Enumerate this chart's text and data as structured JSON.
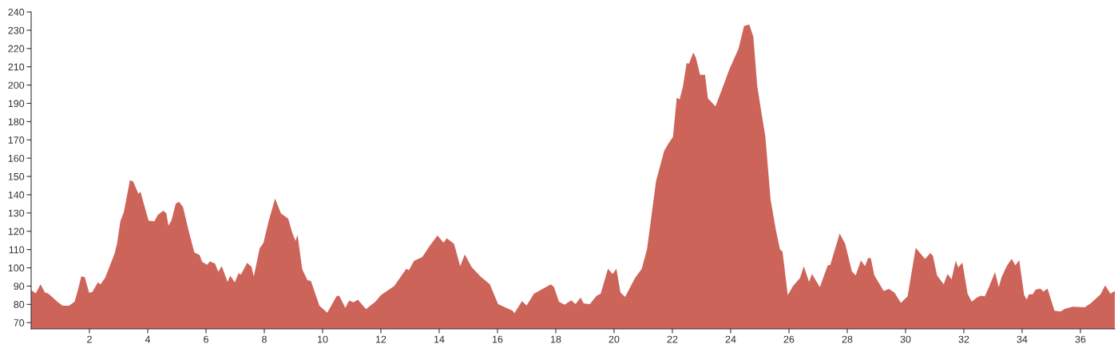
{
  "chart_data": {
    "type": "area",
    "x": [
      0,
      0.16,
      0.32,
      0.48,
      0.58,
      0.9,
      1.08,
      1.3,
      1.49,
      1.58,
      1.72,
      1.84,
      1.99,
      2.1,
      2.29,
      2.38,
      2.54,
      2.86,
      2.95,
      3.06,
      3.18,
      3.39,
      3.5,
      3.68,
      3.75,
      4.03,
      4.23,
      4.34,
      4.53,
      4.64,
      4.71,
      4.82,
      4.96,
      5.07,
      5.21,
      5.4,
      5.6,
      5.78,
      5.87,
      6.04,
      6.13,
      6.31,
      6.42,
      6.54,
      6.74,
      6.83,
      6.99,
      7.11,
      7.2,
      7.41,
      7.56,
      7.64,
      7.84,
      7.97,
      8.16,
      8.37,
      8.57,
      8.82,
      8.96,
      9.07,
      9.14,
      9.3,
      9.48,
      9.6,
      9.89,
      10.16,
      10.48,
      10.57,
      10.78,
      10.91,
      11.06,
      11.21,
      11.49,
      11.81,
      12,
      12.46,
      12.87,
      12.96,
      13.14,
      13.42,
      13.69,
      13.94,
      14.15,
      14.26,
      14.51,
      14.72,
      14.88,
      15.11,
      15.42,
      15.74,
      16.02,
      16.52,
      16.58,
      16.84,
      17,
      17.25,
      17.57,
      17.83,
      17.94,
      18.11,
      18.3,
      18.53,
      18.68,
      18.85,
      18.96,
      19.17,
      19.4,
      19.54,
      19.79,
      19.95,
      20.08,
      20.22,
      20.38,
      20.72,
      20.95,
      21.13,
      21.31,
      21.44,
      21.72,
      21.85,
      22.02,
      22.15,
      22.25,
      22.36,
      22.49,
      22.57,
      22.72,
      22.81,
      22.95,
      23.12,
      23.22,
      23.48,
      23.77,
      23.95,
      24.27,
      24.46,
      24.64,
      24.78,
      24.91,
      25.05,
      25.19,
      25.37,
      25.55,
      25.69,
      25.78,
      25.96,
      26.14,
      26.38,
      26.51,
      26.69,
      26.79,
      27.06,
      27.33,
      27.42,
      27.74,
      27.93,
      28.16,
      28.29,
      28.47,
      28.61,
      28.72,
      28.81,
      28.93,
      29.25,
      29.43,
      29.62,
      29.84,
      30.07,
      30.35,
      30.67,
      30.85,
      30.94,
      31.08,
      31.31,
      31.44,
      31.58,
      31.72,
      31.81,
      31.95,
      32.13,
      32.27,
      32.45,
      32.58,
      32.72,
      32.86,
      33.07,
      33.2,
      33.29,
      33.47,
      33.64,
      33.77,
      33.9,
      34.07,
      34.16,
      34.23,
      34.36,
      34.46,
      34.62,
      34.73,
      34.87,
      35.11,
      35.32,
      35.46,
      35.73,
      36.15,
      36.37,
      36.69,
      36.85,
      37.03,
      37.18
    ],
    "values": [
      87.8,
      86,
      91,
      86.4,
      86,
      81.4,
      79.3,
      79.3,
      81.4,
      86.4,
      95.3,
      94.9,
      86.4,
      86.8,
      92,
      90.9,
      94.6,
      107.7,
      113.4,
      125.5,
      130.5,
      147.9,
      147.2,
      140.5,
      141.6,
      125.8,
      125.5,
      128.8,
      131.2,
      129.8,
      123.1,
      126.2,
      135.1,
      136.2,
      133.3,
      120.5,
      108.4,
      107,
      103.2,
      101.7,
      103.5,
      102.3,
      97.8,
      100.9,
      92.3,
      95.6,
      92,
      97,
      96.3,
      102.7,
      100.6,
      95.3,
      110.6,
      113.7,
      126.2,
      137.9,
      129.8,
      126.9,
      119.1,
      114.8,
      118,
      99.2,
      93.2,
      92.8,
      79.3,
      75.4,
      84.5,
      84.7,
      78.1,
      82.1,
      81.1,
      82.5,
      77.4,
      81.4,
      85.1,
      90.1,
      99.5,
      98.7,
      103.8,
      105.9,
      112.4,
      117.7,
      113.8,
      116.2,
      113.1,
      100.9,
      107.3,
      100.5,
      95.2,
      90.9,
      80.1,
      76.5,
      75.1,
      81.8,
      79.4,
      85.8,
      88.7,
      90.9,
      89.4,
      81.5,
      79.8,
      82.2,
      80.1,
      83.7,
      80.5,
      80.1,
      84.7,
      85.8,
      99.5,
      96.6,
      99.5,
      86.5,
      84.1,
      94.4,
      99.5,
      110.2,
      131.7,
      147.5,
      164,
      167.6,
      171.6,
      193.1,
      192.2,
      199.1,
      212,
      211.7,
      217.8,
      214.9,
      205.6,
      205.6,
      192.7,
      188.3,
      200.6,
      208.4,
      219.9,
      232.4,
      233.1,
      226.3,
      199.8,
      185.5,
      171.9,
      137.4,
      120.9,
      110.2,
      108.8,
      85.1,
      90.1,
      94.4,
      100.9,
      92.3,
      96.6,
      89.4,
      101.3,
      101.6,
      118.8,
      113.1,
      98,
      95.9,
      104,
      100.9,
      105.5,
      105.2,
      95.9,
      87.3,
      88.4,
      86.5,
      80.8,
      84.4,
      110.9,
      104.8,
      108.1,
      106.6,
      95.9,
      90.9,
      96.6,
      93.7,
      103.8,
      100.2,
      102.8,
      85.8,
      81.5,
      83.7,
      84.7,
      84.4,
      89.4,
      97.6,
      89.4,
      94.7,
      100.9,
      104.9,
      101.3,
      104.2,
      85.1,
      82.7,
      85.5,
      85.5,
      88,
      88.7,
      87,
      88.7,
      76.5,
      76.1,
      77.5,
      78.7,
      78.4,
      80.8,
      85.5,
      90.4,
      85.8,
      87.3
    ],
    "color": "#cd6459",
    "xlim": [
      0,
      37.18
    ],
    "ylim": [
      66.6,
      240
    ],
    "xticks": [
      2,
      4,
      6,
      8,
      10,
      12,
      14,
      16,
      18,
      20,
      22,
      24,
      26,
      28,
      30,
      32,
      34,
      36
    ],
    "yticks": [
      70,
      80,
      90,
      100,
      110,
      120,
      130,
      140,
      150,
      160,
      170,
      180,
      190,
      200,
      210,
      220,
      230,
      240
    ],
    "grid": false,
    "legend": false
  }
}
